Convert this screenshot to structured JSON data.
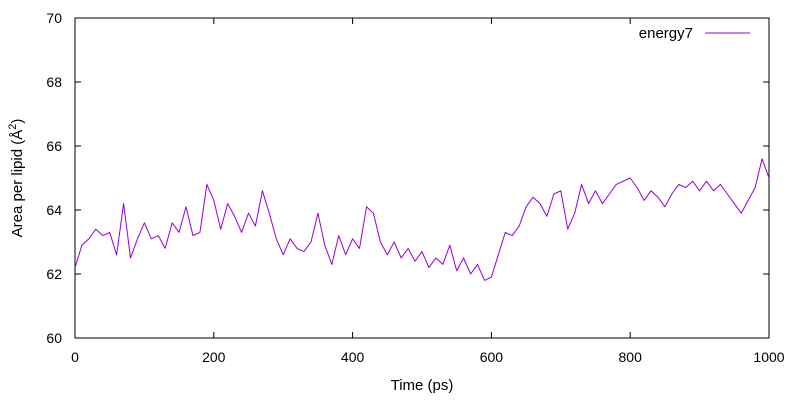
{
  "chart_data": {
    "type": "line",
    "title": "",
    "xlabel": "Time (ps)",
    "ylabel_prefix": "Area per lipid (Å",
    "ylabel_sup": "2",
    "ylabel_suffix": ")",
    "xlim": [
      0,
      1000
    ],
    "ylim": [
      60,
      70
    ],
    "xticks": [
      0,
      200,
      400,
      600,
      800,
      1000
    ],
    "yticks": [
      60,
      62,
      64,
      66,
      68,
      70
    ],
    "grid": false,
    "legend_position": "top-right",
    "color": "#9400D3",
    "series": [
      {
        "name": "energy7",
        "x": [
          0,
          10,
          20,
          30,
          40,
          50,
          60,
          70,
          80,
          90,
          100,
          110,
          120,
          130,
          140,
          150,
          160,
          170,
          180,
          190,
          200,
          210,
          220,
          230,
          240,
          250,
          260,
          270,
          280,
          290,
          300,
          310,
          320,
          330,
          340,
          350,
          360,
          370,
          380,
          390,
          400,
          410,
          420,
          430,
          440,
          450,
          460,
          470,
          480,
          490,
          500,
          510,
          520,
          530,
          540,
          550,
          560,
          570,
          580,
          590,
          600,
          610,
          620,
          630,
          640,
          650,
          660,
          670,
          680,
          690,
          700,
          710,
          720,
          730,
          740,
          750,
          760,
          770,
          780,
          790,
          800,
          810,
          820,
          830,
          840,
          850,
          860,
          870,
          880,
          890,
          900,
          910,
          920,
          930,
          940,
          950,
          960,
          970,
          980,
          990,
          1000
        ],
        "values": [
          62.2,
          62.9,
          63.1,
          63.4,
          63.2,
          63.3,
          62.6,
          64.2,
          62.5,
          63.1,
          63.6,
          63.1,
          63.2,
          62.8,
          63.6,
          63.3,
          64.1,
          63.2,
          63.3,
          64.8,
          64.3,
          63.4,
          64.2,
          63.8,
          63.3,
          63.9,
          63.5,
          64.6,
          63.9,
          63.1,
          62.6,
          63.1,
          62.8,
          62.7,
          63.0,
          63.9,
          62.9,
          62.3,
          63.2,
          62.6,
          63.1,
          62.8,
          64.1,
          63.9,
          63.0,
          62.6,
          63.0,
          62.5,
          62.8,
          62.4,
          62.7,
          62.2,
          62.5,
          62.3,
          62.9,
          62.1,
          62.5,
          62.0,
          62.3,
          61.8,
          61.9,
          62.6,
          63.3,
          63.2,
          63.5,
          64.1,
          64.4,
          64.2,
          63.8,
          64.5,
          64.6,
          63.4,
          63.9,
          64.8,
          64.2,
          64.6,
          64.2,
          64.5,
          64.8,
          64.9,
          65.0,
          64.7,
          64.3,
          64.6,
          64.4,
          64.1,
          64.5,
          64.8,
          64.7,
          64.9,
          64.6,
          64.9,
          64.6,
          64.8,
          64.5,
          64.2,
          63.9,
          64.3,
          64.7,
          65.6,
          65.0
        ]
      }
    ]
  }
}
